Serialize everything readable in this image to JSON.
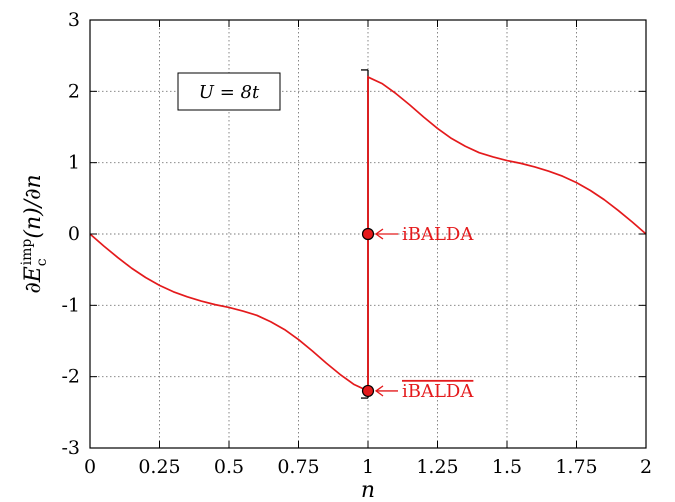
{
  "chart_data": {
    "type": "line",
    "title": "",
    "xlabel": "n",
    "ylabel": "∂E_c^imp(n)/∂n",
    "xlim": [
      0,
      2
    ],
    "ylim": [
      -3,
      3
    ],
    "xticks": [
      0,
      0.25,
      0.5,
      0.75,
      1,
      1.25,
      1.5,
      1.75,
      2
    ],
    "xtick_labels": [
      "0",
      "0.25",
      "0.5",
      "0.75",
      "1",
      "1.25",
      "1.5",
      "1.75",
      "2"
    ],
    "yticks": [
      -3,
      -2,
      -1,
      0,
      1,
      2,
      3
    ],
    "ytick_labels": [
      "-3",
      "-2",
      "-1",
      "0",
      "1",
      "2",
      "3"
    ],
    "grid": true,
    "line_color": "#e41a1c",
    "series": [
      {
        "x": [
          0,
          0.05,
          0.1,
          0.15,
          0.2,
          0.25,
          0.3,
          0.35,
          0.4,
          0.45,
          0.5,
          0.55,
          0.6,
          0.65,
          0.7,
          0.75,
          0.8,
          0.85,
          0.9,
          0.95,
          1.0,
          1.0,
          1.05,
          1.1,
          1.15,
          1.2,
          1.25,
          1.3,
          1.35,
          1.4,
          1.45,
          1.5,
          1.55,
          1.6,
          1.65,
          1.7,
          1.75,
          1.8,
          1.85,
          1.9,
          1.95,
          2.0
        ],
        "y": [
          0,
          -0.17,
          -0.33,
          -0.48,
          -0.61,
          -0.72,
          -0.81,
          -0.88,
          -0.94,
          -0.99,
          -1.03,
          -1.08,
          -1.14,
          -1.23,
          -1.34,
          -1.48,
          -1.64,
          -1.81,
          -1.97,
          -2.11,
          -2.2,
          2.2,
          2.11,
          1.97,
          1.81,
          1.64,
          1.48,
          1.34,
          1.23,
          1.14,
          1.08,
          1.03,
          0.99,
          0.94,
          0.88,
          0.81,
          0.72,
          0.61,
          0.48,
          0.33,
          0.17,
          0
        ]
      }
    ],
    "errorbar": {
      "x": 1,
      "ymin": -2.3,
      "ymax": 2.3
    },
    "points": [
      {
        "x": 1,
        "y": 0,
        "label": "iBALDA"
      },
      {
        "x": 1,
        "y": -2.2,
        "label": "iBALDA",
        "overline": true
      }
    ],
    "annotation_box": {
      "text": "U = 8t",
      "position": "top-left"
    }
  }
}
